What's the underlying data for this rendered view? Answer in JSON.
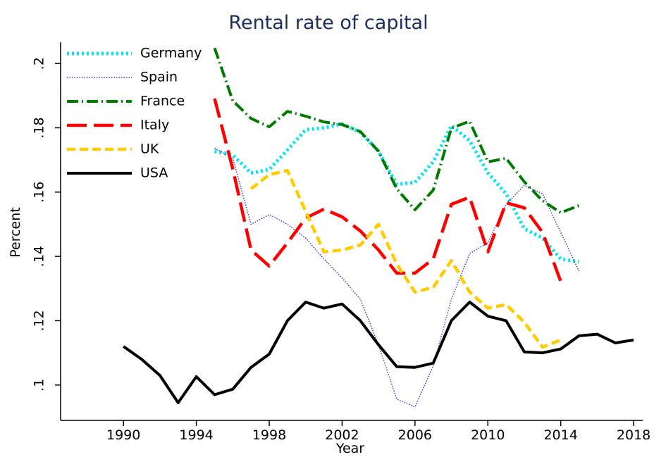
{
  "chart_data": {
    "type": "line",
    "title": "Rental rate of capital",
    "x_label": "Year",
    "y_label": "Percent",
    "legend": "top-left",
    "grid": false,
    "xlim": [
      1986.55,
      2018.5
    ],
    "ylim": [
      0.089,
      0.2066
    ],
    "xticks": [
      1990,
      1994,
      1998,
      2002,
      2006,
      2010,
      2014,
      2018
    ],
    "yticks": [
      {
        "value": 0.1,
        "label": ".1"
      },
      {
        "value": 0.12,
        "label": ".12"
      },
      {
        "value": 0.14,
        "label": ".14"
      },
      {
        "value": 0.16,
        "label": ".16"
      },
      {
        "value": 0.18,
        "label": ".18"
      },
      {
        "value": 0.2,
        "label": ".2"
      }
    ],
    "x": [
      1990,
      1991,
      1992,
      1993,
      1994,
      1995,
      1996,
      1997,
      1998,
      1999,
      2000,
      2001,
      2002,
      2003,
      2004,
      2005,
      2006,
      2007,
      2008,
      2009,
      2010,
      2011,
      2012,
      2013,
      2014,
      2015,
      2016,
      2017,
      2018
    ],
    "series": [
      {
        "name": "Germany",
        "color": "#00e5ee",
        "line_style": "dot",
        "values": [
          null,
          null,
          null,
          null,
          null,
          0.1727,
          0.1716,
          0.1659,
          0.167,
          0.1731,
          0.1794,
          0.18,
          0.1812,
          0.1786,
          0.1727,
          0.1624,
          0.163,
          0.1694,
          0.1807,
          0.176,
          0.166,
          0.1595,
          0.1486,
          0.1457,
          0.1392,
          0.1383,
          null,
          null,
          null
        ]
      },
      {
        "name": "Spain",
        "color": "#3a3acf",
        "line_style": "fine-dot",
        "values": [
          null,
          null,
          null,
          null,
          null,
          0.1737,
          0.1705,
          0.15,
          0.153,
          0.15,
          0.1457,
          0.1392,
          0.1333,
          0.1267,
          0.1125,
          0.0956,
          0.0932,
          0.1059,
          0.1267,
          0.1409,
          0.1442,
          0.1562,
          0.1621,
          0.1595,
          0.1475,
          0.1354,
          null,
          null,
          null
        ]
      },
      {
        "name": "France",
        "color": "#007a00",
        "line_style": "dash-dot",
        "values": [
          null,
          null,
          null,
          null,
          null,
          0.2048,
          0.1884,
          0.1829,
          0.1803,
          0.1851,
          0.1836,
          0.1818,
          0.181,
          0.1788,
          0.1727,
          0.161,
          0.1545,
          0.1606,
          0.1799,
          0.182,
          0.1694,
          0.1705,
          0.1632,
          0.1573,
          0.1536,
          0.1558,
          null,
          null,
          null
        ]
      },
      {
        "name": "Italy",
        "color": "#ff0000",
        "line_style": "long-dash",
        "values": [
          null,
          null,
          null,
          null,
          null,
          0.1891,
          0.1672,
          0.142,
          0.137,
          0.1442,
          0.1519,
          0.1547,
          0.1523,
          0.1479,
          0.142,
          0.1348,
          0.1348,
          0.1392,
          0.1562,
          0.1584,
          0.1414,
          0.1567,
          0.1551,
          0.1475,
          0.1322,
          null,
          null,
          null,
          null
        ]
      },
      {
        "name": "UK",
        "color": "#ffcc00",
        "line_style": "dash",
        "values": [
          null,
          null,
          null,
          null,
          null,
          null,
          null,
          0.161,
          0.1654,
          0.1667,
          0.154,
          0.1414,
          0.142,
          0.1435,
          0.15,
          0.1376,
          0.1289,
          0.1304,
          0.1387,
          0.1289,
          0.1239,
          0.125,
          0.1195,
          0.1118,
          0.114,
          null,
          null,
          null,
          null
        ]
      },
      {
        "name": "USA",
        "color": "#000000",
        "line_style": "solid",
        "values": [
          0.112,
          0.108,
          0.103,
          0.0945,
          0.1026,
          0.097,
          0.0987,
          0.1055,
          0.1096,
          0.12,
          0.1258,
          0.1239,
          0.1252,
          0.12,
          0.1125,
          0.1057,
          0.1055,
          0.1068,
          0.12,
          0.1258,
          0.1214,
          0.12,
          0.1103,
          0.11,
          0.1112,
          0.1153,
          0.1158,
          0.1131,
          0.114
        ]
      }
    ]
  }
}
